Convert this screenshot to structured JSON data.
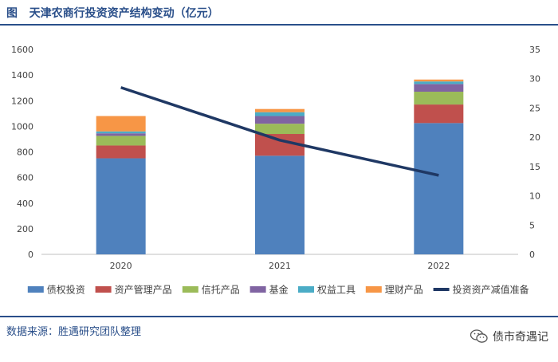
{
  "header": {
    "fig_label": "图",
    "title": "天津农商行投资资产结构变动（亿元）"
  },
  "footer": {
    "source": "数据来源：胜遇研究团队整理",
    "brand": "债市奇遇记",
    "brand_icon": "wechat-icon"
  },
  "colors": {
    "title": "#2a4f8a",
    "series": [
      "#4f81bd",
      "#c0504d",
      "#9bbb59",
      "#8064a2",
      "#4bacc6",
      "#f79646"
    ],
    "line": "#1f3864"
  },
  "chart_data": {
    "type": "bar",
    "stacked": true,
    "categories": [
      "2020",
      "2021",
      "2022"
    ],
    "series": [
      {
        "name": "债权投资",
        "values": [
          750,
          770,
          1025
        ],
        "axis": "left"
      },
      {
        "name": "资产管理产品",
        "values": [
          100,
          170,
          145
        ],
        "axis": "left"
      },
      {
        "name": "信托产品",
        "values": [
          75,
          80,
          100
        ],
        "axis": "left"
      },
      {
        "name": "基金",
        "values": [
          20,
          60,
          60
        ],
        "axis": "left"
      },
      {
        "name": "权益工具",
        "values": [
          15,
          30,
          20
        ],
        "axis": "left"
      },
      {
        "name": "理财产品",
        "values": [
          120,
          25,
          15
        ],
        "axis": "left"
      }
    ],
    "line_series": [
      {
        "name": "投资资产减值准备",
        "values": [
          28.5,
          19.5,
          13.5
        ],
        "axis": "right"
      }
    ],
    "left_axis": {
      "min": 0,
      "max": 1600,
      "step": 200,
      "ticks": [
        "0",
        "200",
        "400",
        "600",
        "800",
        "1000",
        "1200",
        "1400",
        "1600"
      ]
    },
    "right_axis": {
      "min": 0,
      "max": 35,
      "step": 5,
      "ticks": [
        "0",
        "5",
        "10",
        "15",
        "20",
        "25",
        "30",
        "35"
      ]
    },
    "grid": false,
    "legend_position": "bottom"
  }
}
